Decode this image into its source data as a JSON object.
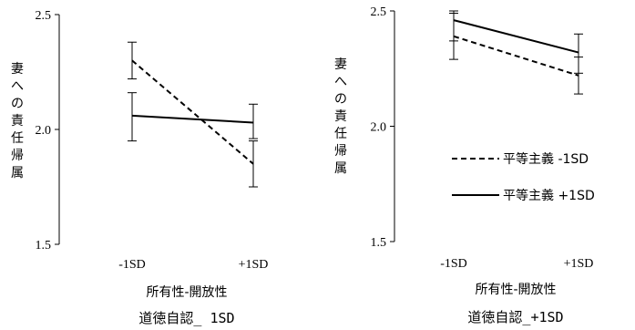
{
  "chart_data": [
    {
      "type": "line",
      "caption": "道徳自認_ 1SD",
      "xlabel": "所有性-開放性",
      "ylabel": "妻への責任帰属",
      "categories": [
        "-1SD",
        "+1SD"
      ],
      "ylim": [
        1.5,
        2.5
      ],
      "yticks": [
        "1.5",
        "2.0",
        "2.5"
      ],
      "series": [
        {
          "name": "平等主義 -1SD",
          "style": "dashed",
          "values": [
            2.3,
            1.85
          ],
          "err_low": [
            2.22,
            1.75
          ],
          "err_high": [
            2.38,
            1.95
          ]
        },
        {
          "name": "平等主義 +1SD",
          "style": "solid",
          "values": [
            2.06,
            2.03
          ],
          "err_low": [
            1.95,
            1.96
          ],
          "err_high": [
            2.16,
            2.11
          ]
        }
      ]
    },
    {
      "type": "line",
      "caption": "道徳自認_+1SD",
      "xlabel": "所有性-開放性",
      "ylabel": "妻への責任帰属",
      "categories": [
        "-1SD",
        "+1SD"
      ],
      "ylim": [
        1.5,
        2.5
      ],
      "yticks": [
        "1.5",
        "2.0",
        "2.5"
      ],
      "series": [
        {
          "name": "平等主義 -1SD",
          "style": "dashed",
          "values": [
            2.39,
            2.22
          ],
          "err_low": [
            2.29,
            2.14
          ],
          "err_high": [
            2.49,
            2.3
          ]
        },
        {
          "name": "平等主義 +1SD",
          "style": "solid",
          "values": [
            2.46,
            2.32
          ],
          "err_low": [
            2.37,
            2.23
          ],
          "err_high": [
            2.5,
            2.4
          ]
        }
      ],
      "legend": {
        "placement": "center-right",
        "entries": [
          "平等主義 -1SD",
          "平等主義 +1SD"
        ]
      }
    }
  ]
}
